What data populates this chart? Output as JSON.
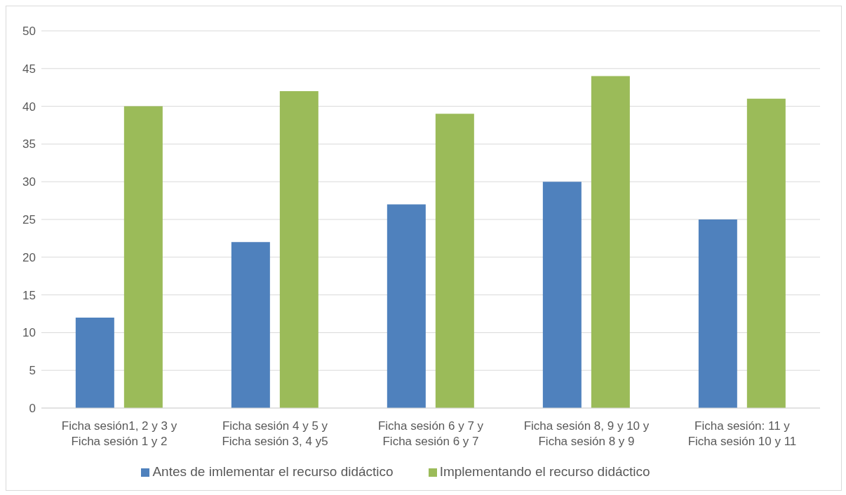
{
  "chart_data": {
    "type": "bar",
    "categories": [
      "Ficha sesión1, 2 y 3 y\nFicha sesión 1 y 2",
      "Ficha sesión 4 y 5 y\nFicha sesión 3, 4 y5",
      "Ficha sesión 6 y 7 y\nFicha sesión 6 y 7",
      "Ficha sesión 8, 9 y 10 y\nFicha sesión 8 y 9",
      "Ficha sesión: 11 y\nFicha sesión 10 y 11"
    ],
    "series": [
      {
        "name": "Antes de imlementar el recurso didáctico",
        "color": "#4f81bd",
        "values": [
          12,
          22,
          27,
          30,
          25
        ]
      },
      {
        "name": "Implementando el recurso didáctico",
        "color": "#9bbb59",
        "values": [
          40,
          42,
          39,
          44,
          41
        ]
      }
    ],
    "ylim": [
      0,
      50
    ],
    "yticks": [
      0,
      5,
      10,
      15,
      20,
      25,
      30,
      35,
      40,
      45,
      50
    ],
    "grid": "y",
    "legend": "bottom"
  }
}
